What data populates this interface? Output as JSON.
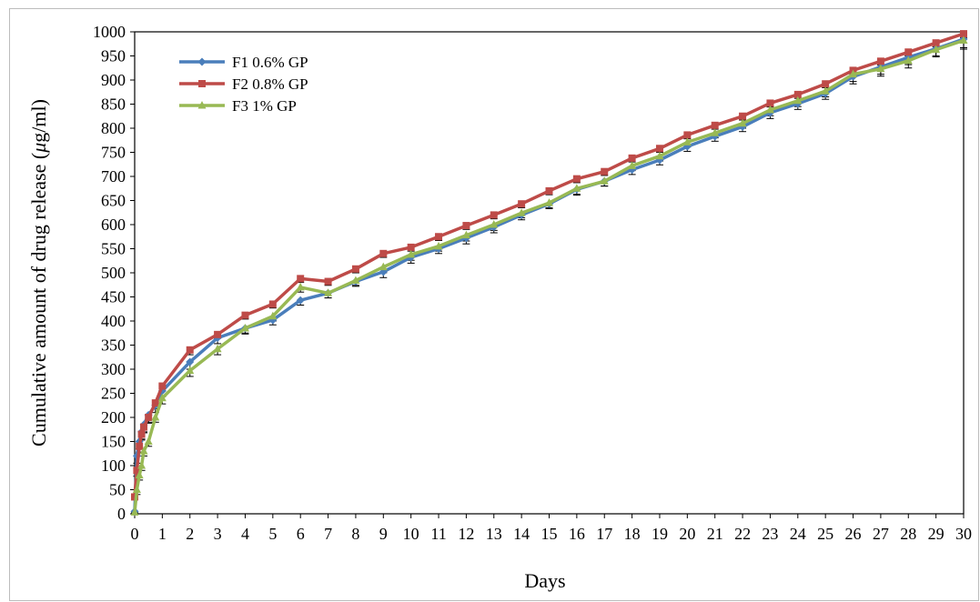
{
  "chart_data": {
    "type": "line",
    "title": "",
    "xlabel": "Days",
    "ylabel": "Cumulative amount of drug release  (μg/ml)",
    "ylabel_prefix": "Cumulative amount of drug release  (",
    "ylabel_mu": "μ",
    "ylabel_suffix": "g/ml)",
    "xlim": [
      0,
      30
    ],
    "ylim": [
      0,
      1000
    ],
    "x_ticks": [
      0,
      1,
      2,
      3,
      4,
      5,
      6,
      7,
      8,
      9,
      10,
      11,
      12,
      13,
      14,
      15,
      16,
      17,
      18,
      19,
      20,
      21,
      22,
      23,
      24,
      25,
      26,
      27,
      28,
      29,
      30
    ],
    "y_ticks": [
      0,
      50,
      100,
      150,
      200,
      250,
      300,
      350,
      400,
      450,
      500,
      550,
      600,
      650,
      700,
      750,
      800,
      850,
      900,
      950,
      1000
    ],
    "grid": false,
    "legend_position": "top-left",
    "x": [
      0,
      0.08,
      0.17,
      0.25,
      0.33,
      0.5,
      0.75,
      1,
      2,
      3,
      4,
      5,
      6,
      7,
      8,
      9,
      10,
      11,
      12,
      13,
      14,
      15,
      16,
      17,
      18,
      19,
      20,
      21,
      22,
      23,
      24,
      25,
      26,
      27,
      28,
      29,
      30
    ],
    "series": [
      {
        "name": "F1 0.6% GP",
        "color": "#4a7ebb",
        "marker": "diamond",
        "values": [
          5,
          120,
          150,
          170,
          185,
          205,
          225,
          255,
          315,
          365,
          385,
          402,
          443,
          458,
          482,
          502,
          532,
          550,
          572,
          595,
          620,
          643,
          673,
          690,
          714,
          734,
          762,
          783,
          803,
          832,
          851,
          872,
          907,
          927,
          947,
          965,
          985
        ],
        "errors": [
          3,
          15,
          15,
          15,
          15,
          15,
          15,
          12,
          15,
          12,
          12,
          10,
          10,
          10,
          10,
          12,
          12,
          10,
          12,
          12,
          10,
          10,
          12,
          10,
          10,
          10,
          10,
          10,
          10,
          12,
          12,
          12,
          15,
          15,
          15,
          15,
          18
        ]
      },
      {
        "name": "F2 0.8% GP",
        "color": "#be4b48",
        "marker": "square",
        "values": [
          35,
          90,
          140,
          165,
          180,
          200,
          230,
          265,
          340,
          372,
          412,
          435,
          488,
          482,
          508,
          540,
          553,
          575,
          598,
          620,
          643,
          670,
          695,
          710,
          738,
          758,
          786,
          806,
          825,
          852,
          870,
          892,
          920,
          939,
          958,
          977,
          996
        ],
        "errors": [
          5,
          12,
          12,
          12,
          12,
          12,
          12,
          10,
          10,
          8,
          8,
          8,
          8,
          8,
          8,
          8,
          8,
          8,
          8,
          8,
          8,
          8,
          8,
          8,
          8,
          8,
          8,
          8,
          8,
          8,
          8,
          8,
          8,
          8,
          8,
          8,
          8
        ]
      },
      {
        "name": "F3 1% GP",
        "color": "#98b954",
        "marker": "triangle",
        "values": [
          3,
          50,
          80,
          100,
          130,
          150,
          200,
          240,
          297,
          342,
          385,
          410,
          470,
          458,
          484,
          512,
          538,
          555,
          578,
          600,
          624,
          645,
          675,
          690,
          722,
          742,
          771,
          790,
          810,
          838,
          857,
          877,
          912,
          923,
          940,
          963,
          982
        ],
        "errors": [
          3,
          10,
          10,
          10,
          10,
          10,
          10,
          12,
          12,
          12,
          10,
          10,
          10,
          10,
          10,
          12,
          12,
          10,
          12,
          12,
          10,
          10,
          12,
          10,
          10,
          10,
          10,
          10,
          10,
          12,
          12,
          12,
          15,
          15,
          15,
          15,
          18
        ]
      }
    ]
  }
}
